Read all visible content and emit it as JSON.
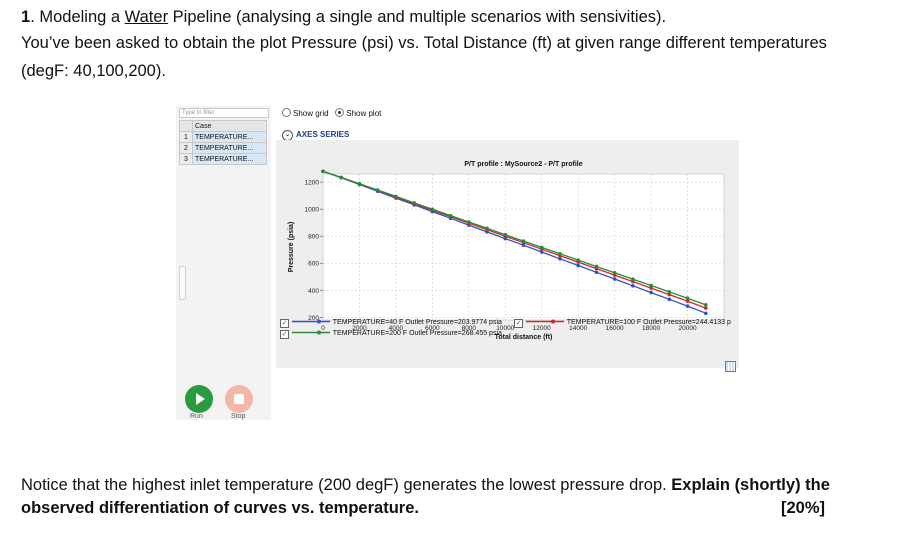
{
  "question": {
    "number": "1",
    "title_pre": ". Modeling a ",
    "title_underlined": "Water",
    "title_post": " Pipeline (analysing a single and multiple scenarios with sensivities).",
    "line2": "You’ve been asked to obtain the plot Pressure (psi) vs. Total Distance (ft) at given range different temperatures",
    "line3": "(degF:  40,100,200)."
  },
  "app": {
    "filter_placeholder": "Type to filter",
    "case_header": "Case",
    "cases": [
      {
        "index": "1",
        "name": "TEMPERATURE..."
      },
      {
        "index": "2",
        "name": "TEMPERATURE..."
      },
      {
        "index": "3",
        "name": "TEMPERATURE..."
      }
    ],
    "show_grid_label": "Show grid",
    "show_plot_label": "Show plot",
    "axes_series_label": "AXES SERIES",
    "run_label": "Run",
    "stop_label": "Stop",
    "legend": [
      {
        "label": "TEMPERATURE=40 F Outlet Pressure=203.9774 psia"
      },
      {
        "label": "TEMPERATURE=100 F Outlet Pressure=244.4133 p"
      },
      {
        "label": "TEMPERATURE=200 F Outlet Pressure=268.455 psia"
      }
    ]
  },
  "chart_data": {
    "type": "line",
    "title": "P/T profile : MySource2 - P/T profile",
    "xlabel": "Total distance (ft)",
    "ylabel": "Pressure (psia)",
    "xlim": [
      0,
      22000
    ],
    "ylim": [
      180,
      1260
    ],
    "xticks": [
      "0",
      "2000",
      "4000",
      "6000",
      "8000",
      "10000",
      "12000",
      "14000",
      "16000",
      "18000",
      "20000"
    ],
    "yticks": [
      "200",
      "400",
      "600",
      "800",
      "1000",
      "1200"
    ],
    "grid": true,
    "x": [
      0,
      1000,
      2000,
      3000,
      4000,
      5000,
      6000,
      7000,
      8000,
      9000,
      10000,
      11000,
      12000,
      13000,
      14000,
      15000,
      16000,
      17000,
      18000,
      19000,
      20000,
      21000
    ],
    "series": [
      {
        "name": "TEMPERATURE=40 F Outlet Pressure=203.9774 psia",
        "color": "#3050c8",
        "values": [
          1280,
          1232,
          1182,
          1132,
          1082,
          1032,
          982,
          932,
          882,
          832,
          782,
          733,
          683,
          633,
          583,
          533,
          483,
          433,
          383,
          333,
          283,
          230
        ]
      },
      {
        "name": "TEMPERATURE=100 F Outlet Pressure=244.4133 p",
        "color": "#d02828",
        "values": [
          1280,
          1234,
          1186,
          1138,
          1089,
          1040,
          992,
          944,
          896,
          848,
          800,
          752,
          704,
          656,
          608,
          560,
          512,
          464,
          416,
          368,
          320,
          268
        ]
      },
      {
        "name": "TEMPERATURE=200 F Outlet Pressure=268.455 psia",
        "color": "#2a8a3a",
        "values": [
          1280,
          1235,
          1188,
          1141,
          1094,
          1046,
          999,
          952,
          905,
          858,
          811,
          764,
          717,
          670,
          623,
          576,
          529,
          482,
          435,
          388,
          341,
          292
        ]
      }
    ]
  },
  "note": {
    "line1_plain": "Notice that the highest inlet temperature (200 degF) generates the lowest pressure drop. ",
    "line1_bold": "Explain (shortly) the",
    "line2_bold": "observed differentiation of curves vs. temperature.",
    "marks": "[20%]"
  }
}
